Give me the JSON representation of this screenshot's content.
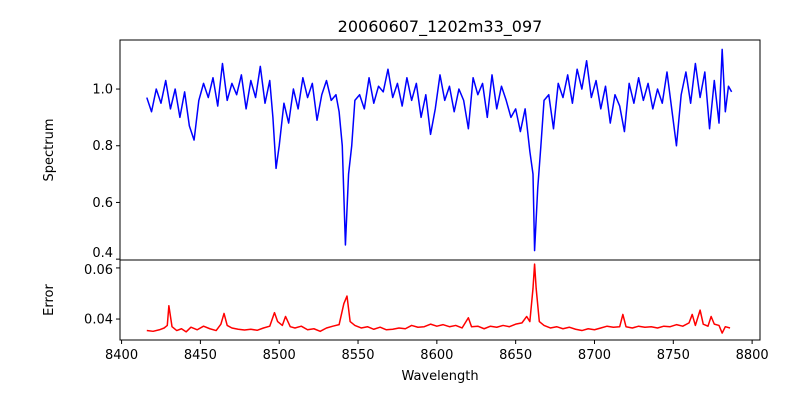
{
  "chart_data": [
    {
      "type": "line",
      "title": "20060607_1202m33_097",
      "xlabel": "",
      "ylabel": "Spectrum",
      "xlim": [
        8399,
        8805
      ],
      "ylim": [
        0.397,
        1.173
      ],
      "yticks": [
        0.4,
        0.6,
        0.8,
        1.0
      ],
      "ytick_labels": [
        "0.4",
        "0.6",
        "0.8",
        "1.0"
      ],
      "grid": false,
      "series": [
        {
          "name": "Spectrum",
          "color": "#0000ff",
          "points": [
            [
              8416,
              0.97
            ],
            [
              8419,
              0.92
            ],
            [
              8422,
              1.0
            ],
            [
              8425,
              0.95
            ],
            [
              8428,
              1.03
            ],
            [
              8431,
              0.93
            ],
            [
              8434,
              1.0
            ],
            [
              8437,
              0.9
            ],
            [
              8440,
              0.99
            ],
            [
              8443,
              0.87
            ],
            [
              8446,
              0.82
            ],
            [
              8449,
              0.96
            ],
            [
              8452,
              1.02
            ],
            [
              8455,
              0.97
            ],
            [
              8458,
              1.04
            ],
            [
              8461,
              0.94
            ],
            [
              8464,
              1.09
            ],
            [
              8467,
              0.96
            ],
            [
              8470,
              1.02
            ],
            [
              8473,
              0.98
            ],
            [
              8476,
              1.05
            ],
            [
              8479,
              0.93
            ],
            [
              8482,
              1.03
            ],
            [
              8485,
              0.97
            ],
            [
              8488,
              1.08
            ],
            [
              8491,
              0.95
            ],
            [
              8494,
              1.03
            ],
            [
              8496,
              0.9
            ],
            [
              8498,
              0.72
            ],
            [
              8500,
              0.8
            ],
            [
              8503,
              0.95
            ],
            [
              8506,
              0.88
            ],
            [
              8509,
              1.0
            ],
            [
              8512,
              0.93
            ],
            [
              8515,
              1.04
            ],
            [
              8518,
              0.97
            ],
            [
              8521,
              1.02
            ],
            [
              8524,
              0.89
            ],
            [
              8527,
              0.98
            ],
            [
              8530,
              1.03
            ],
            [
              8533,
              0.96
            ],
            [
              8536,
              0.98
            ],
            [
              8538,
              0.92
            ],
            [
              8540,
              0.8
            ],
            [
              8542,
              0.45
            ],
            [
              8544,
              0.7
            ],
            [
              8546,
              0.8
            ],
            [
              8548,
              0.96
            ],
            [
              8551,
              0.98
            ],
            [
              8554,
              0.93
            ],
            [
              8557,
              1.04
            ],
            [
              8560,
              0.95
            ],
            [
              8563,
              1.01
            ],
            [
              8566,
              0.99
            ],
            [
              8569,
              1.07
            ],
            [
              8572,
              0.97
            ],
            [
              8575,
              1.02
            ],
            [
              8578,
              0.94
            ],
            [
              8581,
              1.04
            ],
            [
              8584,
              0.96
            ],
            [
              8587,
              1.02
            ],
            [
              8590,
              0.9
            ],
            [
              8593,
              0.98
            ],
            [
              8596,
              0.84
            ],
            [
              8599,
              0.93
            ],
            [
              8602,
              1.05
            ],
            [
              8605,
              0.96
            ],
            [
              8608,
              1.01
            ],
            [
              8611,
              0.92
            ],
            [
              8614,
              1.0
            ],
            [
              8617,
              0.96
            ],
            [
              8620,
              0.86
            ],
            [
              8623,
              1.04
            ],
            [
              8626,
              0.98
            ],
            [
              8629,
              1.02
            ],
            [
              8632,
              0.9
            ],
            [
              8635,
              1.05
            ],
            [
              8638,
              0.93
            ],
            [
              8641,
              1.01
            ],
            [
              8644,
              0.96
            ],
            [
              8647,
              0.9
            ],
            [
              8650,
              0.93
            ],
            [
              8653,
              0.85
            ],
            [
              8656,
              0.93
            ],
            [
              8659,
              0.78
            ],
            [
              8661,
              0.7
            ],
            [
              8662,
              0.43
            ],
            [
              8664,
              0.65
            ],
            [
              8666,
              0.8
            ],
            [
              8668,
              0.96
            ],
            [
              8671,
              0.98
            ],
            [
              8674,
              0.86
            ],
            [
              8677,
              1.02
            ],
            [
              8680,
              0.97
            ],
            [
              8683,
              1.05
            ],
            [
              8686,
              0.95
            ],
            [
              8689,
              1.07
            ],
            [
              8692,
              1.0
            ],
            [
              8695,
              1.1
            ],
            [
              8698,
              0.97
            ],
            [
              8701,
              1.03
            ],
            [
              8704,
              0.93
            ],
            [
              8707,
              1.01
            ],
            [
              8710,
              0.88
            ],
            [
              8713,
              0.98
            ],
            [
              8716,
              0.94
            ],
            [
              8719,
              0.85
            ],
            [
              8722,
              1.02
            ],
            [
              8725,
              0.95
            ],
            [
              8728,
              1.04
            ],
            [
              8731,
              0.96
            ],
            [
              8734,
              1.02
            ],
            [
              8737,
              0.93
            ],
            [
              8740,
              1.0
            ],
            [
              8743,
              0.95
            ],
            [
              8746,
              1.06
            ],
            [
              8749,
              0.93
            ],
            [
              8752,
              0.8
            ],
            [
              8755,
              0.98
            ],
            [
              8758,
              1.06
            ],
            [
              8761,
              0.95
            ],
            [
              8764,
              1.09
            ],
            [
              8767,
              0.97
            ],
            [
              8770,
              1.06
            ],
            [
              8773,
              0.86
            ],
            [
              8776,
              1.03
            ],
            [
              8779,
              0.88
            ],
            [
              8781,
              1.14
            ],
            [
              8783,
              0.92
            ],
            [
              8785,
              1.01
            ],
            [
              8787,
              0.99
            ]
          ]
        }
      ]
    },
    {
      "type": "line",
      "title": "",
      "xlabel": "Wavelength",
      "ylabel": "Error",
      "xlim": [
        8399,
        8805
      ],
      "ylim": [
        0.0318,
        0.0631
      ],
      "xticks": [
        8400,
        8450,
        8500,
        8550,
        8600,
        8650,
        8700,
        8750,
        8800
      ],
      "xtick_labels": [
        "8400",
        "8450",
        "8500",
        "8550",
        "8600",
        "8650",
        "8700",
        "8750",
        "8800"
      ],
      "yticks": [
        0.04,
        0.06
      ],
      "ytick_labels": [
        "0.04",
        "0.06"
      ],
      "grid": false,
      "series": [
        {
          "name": "Error",
          "color": "#ff0000",
          "points": [
            [
              8416,
              0.0355
            ],
            [
              8420,
              0.0352
            ],
            [
              8424,
              0.0358
            ],
            [
              8427,
              0.0365
            ],
            [
              8429,
              0.0375
            ],
            [
              8430,
              0.0452
            ],
            [
              8432,
              0.037
            ],
            [
              8435,
              0.0355
            ],
            [
              8438,
              0.0362
            ],
            [
              8441,
              0.035
            ],
            [
              8444,
              0.0368
            ],
            [
              8448,
              0.0358
            ],
            [
              8452,
              0.0372
            ],
            [
              8456,
              0.0362
            ],
            [
              8460,
              0.0355
            ],
            [
              8463,
              0.038
            ],
            [
              8465,
              0.0422
            ],
            [
              8467,
              0.0375
            ],
            [
              8470,
              0.0365
            ],
            [
              8474,
              0.036
            ],
            [
              8478,
              0.0357
            ],
            [
              8482,
              0.036
            ],
            [
              8486,
              0.0356
            ],
            [
              8490,
              0.0365
            ],
            [
              8494,
              0.0372
            ],
            [
              8497,
              0.0425
            ],
            [
              8499,
              0.039
            ],
            [
              8502,
              0.0375
            ],
            [
              8504,
              0.041
            ],
            [
              8507,
              0.037
            ],
            [
              8510,
              0.0365
            ],
            [
              8514,
              0.0372
            ],
            [
              8518,
              0.0358
            ],
            [
              8522,
              0.0362
            ],
            [
              8526,
              0.0352
            ],
            [
              8530,
              0.0365
            ],
            [
              8534,
              0.0372
            ],
            [
              8538,
              0.0378
            ],
            [
              8541,
              0.046
            ],
            [
              8543,
              0.049
            ],
            [
              8545,
              0.039
            ],
            [
              8548,
              0.0375
            ],
            [
              8552,
              0.0365
            ],
            [
              8556,
              0.037
            ],
            [
              8560,
              0.036
            ],
            [
              8564,
              0.0368
            ],
            [
              8568,
              0.0358
            ],
            [
              8572,
              0.036
            ],
            [
              8576,
              0.0365
            ],
            [
              8580,
              0.0362
            ],
            [
              8584,
              0.0375
            ],
            [
              8588,
              0.0368
            ],
            [
              8592,
              0.037
            ],
            [
              8596,
              0.038
            ],
            [
              8600,
              0.0372
            ],
            [
              8604,
              0.0378
            ],
            [
              8608,
              0.037
            ],
            [
              8612,
              0.0375
            ],
            [
              8616,
              0.0365
            ],
            [
              8620,
              0.0405
            ],
            [
              8622,
              0.037
            ],
            [
              8626,
              0.0372
            ],
            [
              8630,
              0.0362
            ],
            [
              8634,
              0.0372
            ],
            [
              8638,
              0.0368
            ],
            [
              8642,
              0.0375
            ],
            [
              8646,
              0.037
            ],
            [
              8650,
              0.038
            ],
            [
              8654,
              0.0385
            ],
            [
              8657,
              0.041
            ],
            [
              8659,
              0.039
            ],
            [
              8661,
              0.052
            ],
            [
              8662,
              0.0615
            ],
            [
              8663,
              0.052
            ],
            [
              8665,
              0.039
            ],
            [
              8668,
              0.0375
            ],
            [
              8672,
              0.0365
            ],
            [
              8676,
              0.037
            ],
            [
              8680,
              0.0362
            ],
            [
              8684,
              0.0368
            ],
            [
              8688,
              0.036
            ],
            [
              8692,
              0.0355
            ],
            [
              8696,
              0.0362
            ],
            [
              8700,
              0.0358
            ],
            [
              8704,
              0.0365
            ],
            [
              8708,
              0.0372
            ],
            [
              8712,
              0.0368
            ],
            [
              8716,
              0.037
            ],
            [
              8718,
              0.0418
            ],
            [
              8720,
              0.037
            ],
            [
              8724,
              0.0365
            ],
            [
              8728,
              0.0372
            ],
            [
              8732,
              0.0368
            ],
            [
              8736,
              0.037
            ],
            [
              8740,
              0.0365
            ],
            [
              8744,
              0.0372
            ],
            [
              8748,
              0.037
            ],
            [
              8752,
              0.0378
            ],
            [
              8756,
              0.0372
            ],
            [
              8760,
              0.0385
            ],
            [
              8762,
              0.0418
            ],
            [
              8764,
              0.0375
            ],
            [
              8767,
              0.0435
            ],
            [
              8769,
              0.038
            ],
            [
              8772,
              0.0372
            ],
            [
              8774,
              0.041
            ],
            [
              8776,
              0.038
            ],
            [
              8779,
              0.0375
            ],
            [
              8781,
              0.0345
            ],
            [
              8783,
              0.037
            ],
            [
              8786,
              0.0365
            ]
          ]
        }
      ]
    }
  ]
}
